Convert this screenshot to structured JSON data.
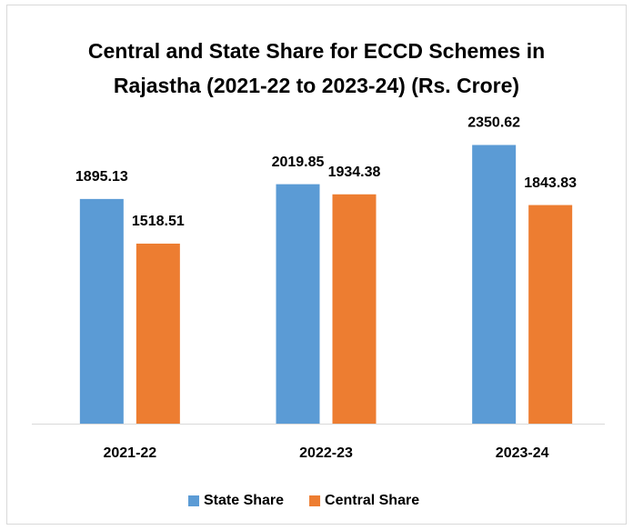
{
  "chart_data": {
    "type": "bar",
    "title": "Central and State Share for ECCD Schemes in Rajastha (2021-22 to 2023-24) (Rs. Crore)",
    "categories": [
      "2021-22",
      "2022-23",
      "2023-24"
    ],
    "series": [
      {
        "name": "State Share",
        "color": "#5b9bd5",
        "values": [
          1895.13,
          2019.85,
          2350.62
        ]
      },
      {
        "name": "Central Share",
        "color": "#ed7d31",
        "values": [
          1518.51,
          1934.38,
          1843.83
        ]
      }
    ],
    "ylim": [
      0,
      2500
    ],
    "legend": "bottom"
  }
}
